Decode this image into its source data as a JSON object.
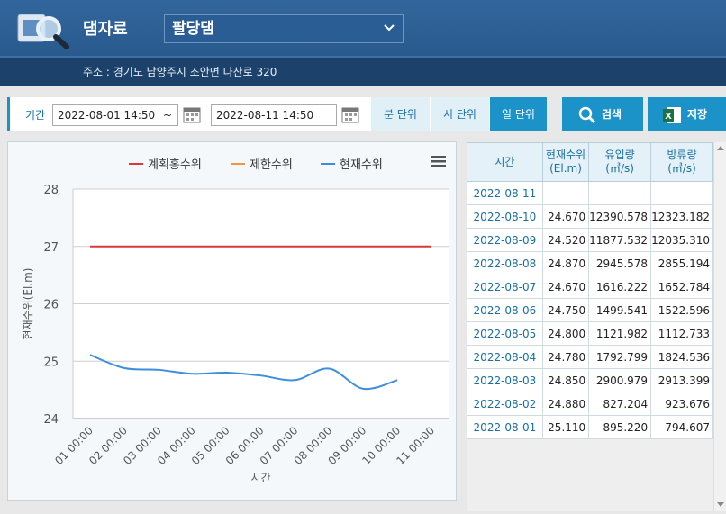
{
  "header": {
    "title": "댐자료",
    "dam_select": "팔당댐",
    "address": "주소 : 경기도 남양주시 조안면 다산로 320"
  },
  "filter": {
    "label": "기간",
    "start": "2022-08-01 14:50",
    "separator": "~",
    "end": "2022-08-11 14:50",
    "units": [
      "분 단위",
      "시 단위",
      "일 단위"
    ],
    "active_unit": 2,
    "search": "검색",
    "save": "저장"
  },
  "chart_data": {
    "type": "line",
    "xlabel": "시간",
    "ylabel": "현재수위(El.m)",
    "categories": [
      "01 00:00",
      "02 00:00",
      "03 00:00",
      "04 00:00",
      "05 00:00",
      "06 00:00",
      "07 00:00",
      "08 00:00",
      "09 00:00",
      "10 00:00",
      "11 00:00"
    ],
    "ylim": [
      24,
      28
    ],
    "yticks": [
      24,
      25,
      26,
      27,
      28
    ],
    "grid": true,
    "legend": "top",
    "series": [
      {
        "name": "계획홍수위",
        "color": "#d9393a",
        "values": [
          27,
          27,
          27,
          27,
          27,
          27,
          27,
          27,
          27,
          27,
          27
        ]
      },
      {
        "name": "제한수위",
        "color": "#f0964a",
        "values": [
          null,
          null,
          null,
          null,
          null,
          null,
          null,
          null,
          null,
          null,
          null
        ]
      },
      {
        "name": "현재수위",
        "color": "#3d8fdc",
        "values": [
          25.11,
          24.88,
          24.85,
          24.78,
          24.8,
          24.75,
          24.67,
          24.87,
          24.52,
          24.67,
          null
        ]
      }
    ]
  },
  "table": {
    "columns": [
      [
        "시간"
      ],
      [
        "현재수위",
        "(El.m)"
      ],
      [
        "유입량",
        "(㎥/s)"
      ],
      [
        "방류량",
        "(㎥/s)"
      ]
    ],
    "rows": [
      [
        "2022-08-11",
        "-",
        "-",
        "-"
      ],
      [
        "2022-08-10",
        "24.670",
        "12390.578",
        "12323.182"
      ],
      [
        "2022-08-09",
        "24.520",
        "11877.532",
        "12035.310"
      ],
      [
        "2022-08-08",
        "24.870",
        "2945.578",
        "2855.194"
      ],
      [
        "2022-08-07",
        "24.670",
        "1616.222",
        "1652.784"
      ],
      [
        "2022-08-06",
        "24.750",
        "1499.541",
        "1522.596"
      ],
      [
        "2022-08-05",
        "24.800",
        "1121.982",
        "1112.733"
      ],
      [
        "2022-08-04",
        "24.780",
        "1792.799",
        "1824.536"
      ],
      [
        "2022-08-03",
        "24.850",
        "2900.979",
        "2913.399"
      ],
      [
        "2022-08-02",
        "24.880",
        "827.204",
        "923.676"
      ],
      [
        "2022-08-01",
        "25.110",
        "895.220",
        "794.607"
      ]
    ]
  }
}
